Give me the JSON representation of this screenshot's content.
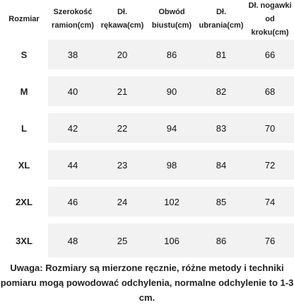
{
  "table": {
    "columns": [
      {
        "line1": "Rozmiar",
        "line2": ""
      },
      {
        "line1": "Szerokość",
        "line2": "ramion(cm)"
      },
      {
        "line1": "Dł.",
        "line2": "rękawa(cm)"
      },
      {
        "line1": "Obwód",
        "line2": "biustu(cm)"
      },
      {
        "line1": "Dł.",
        "line2": "ubrania(cm)"
      },
      {
        "line1": "Dł. nogawki",
        "line2": "od kroku(cm)"
      }
    ],
    "rows": [
      {
        "size": "S",
        "values": [
          "38",
          "20",
          "86",
          "81",
          "66"
        ]
      },
      {
        "size": "M",
        "values": [
          "40",
          "21",
          "90",
          "82",
          "68"
        ]
      },
      {
        "size": "L",
        "values": [
          "42",
          "22",
          "94",
          "83",
          "70"
        ]
      },
      {
        "size": "XL",
        "values": [
          "44",
          "23",
          "98",
          "84",
          "72"
        ]
      },
      {
        "size": "2XL",
        "values": [
          "46",
          "24",
          "102",
          "85",
          "74"
        ]
      },
      {
        "size": "3XL",
        "values": [
          "48",
          "25",
          "106",
          "86",
          "76"
        ]
      }
    ]
  },
  "note": {
    "line1": "Uwaga: Rozmiary są mierzone ręcznie, różne metody i techniki",
    "line2": "pomiaru mogą powodować odchylenia, normalne odchylenie to 1-3 cm."
  },
  "colors": {
    "row_band": "#f2f2f2",
    "background": "#ffffff",
    "text": "#111111"
  }
}
